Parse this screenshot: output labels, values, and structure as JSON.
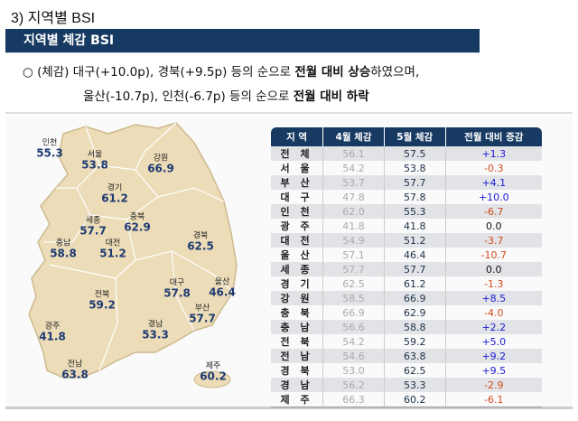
{
  "section_title": "3) 지역별 BSI",
  "box_title": "지역별 체감 BSI",
  "bullet": {
    "line1_a": "○ (체감) 대구(+10.0p), 경북(+9.5p) 등의 순으로 ",
    "line1_b": "전월 대비 상승",
    "line1_c": "하였으며,",
    "line2_a": "울산(-10.7p), 인천(-6.7p) 등의 순으로 ",
    "line2_b": "전월 대비 하락"
  },
  "map": [
    {
      "name": "인천",
      "value": "55.3"
    },
    {
      "name": "서울",
      "value": "53.8"
    },
    {
      "name": "강원",
      "value": "66.9"
    },
    {
      "name": "경기",
      "value": "61.2"
    },
    {
      "name": "세종",
      "value": "57.7"
    },
    {
      "name": "충북",
      "value": "62.9"
    },
    {
      "name": "대전",
      "value": "51.2"
    },
    {
      "name": "충남",
      "value": "58.8"
    },
    {
      "name": "경북",
      "value": "62.5"
    },
    {
      "name": "대구",
      "value": "57.8"
    },
    {
      "name": "울산",
      "value": "46.4"
    },
    {
      "name": "전북",
      "value": "59.2"
    },
    {
      "name": "부산",
      "value": "57.7"
    },
    {
      "name": "광주",
      "value": "41.8"
    },
    {
      "name": "경남",
      "value": "53.3"
    },
    {
      "name": "전남",
      "value": "63.8"
    },
    {
      "name": "제주",
      "value": "60.2"
    }
  ],
  "table": {
    "headers": [
      "지 역",
      "4월 체감",
      "5월 체감",
      "전월 대비 증감"
    ],
    "rows": [
      [
        "전 체",
        "56.1",
        "57.5",
        "+1.3"
      ],
      [
        "서 울",
        "54.2",
        "53.8",
        "-0.3"
      ],
      [
        "부 산",
        "53.7",
        "57.7",
        "+4.1"
      ],
      [
        "대 구",
        "47.8",
        "57.8",
        "+10.0"
      ],
      [
        "인 천",
        "62.0",
        "55.3",
        "-6.7"
      ],
      [
        "광 주",
        "41.8",
        "41.8",
        "0.0"
      ],
      [
        "대 전",
        "54.9",
        "51.2",
        "-3.7"
      ],
      [
        "울 산",
        "57.1",
        "46.4",
        "-10.7"
      ],
      [
        "세 종",
        "57.7",
        "57.7",
        "0.0"
      ],
      [
        "경 기",
        "62.5",
        "61.2",
        "-1.3"
      ],
      [
        "강 원",
        "58.5",
        "66.9",
        "+8.5"
      ],
      [
        "충 북",
        "66.9",
        "62.9",
        "-4.0"
      ],
      [
        "충 남",
        "56.6",
        "58.8",
        "+2.2"
      ],
      [
        "전 북",
        "54.2",
        "59.2",
        "+5.0"
      ],
      [
        "전 남",
        "54.6",
        "63.8",
        "+9.2"
      ],
      [
        "경 북",
        "53.0",
        "62.5",
        "+9.5"
      ],
      [
        "경 남",
        "56.2",
        "53.3",
        "-2.9"
      ],
      [
        "제 주",
        "66.3",
        "60.2",
        "-6.1"
      ]
    ]
  },
  "colors": {
    "header": "#173a63",
    "map_fill": "#ecdcb8",
    "increase": "#1a1ad8",
    "decrease": "#d24a1c"
  }
}
